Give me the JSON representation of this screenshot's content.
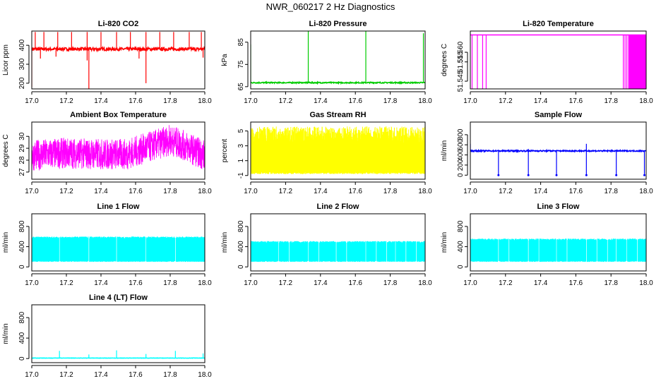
{
  "title": "NWR_060217  2 Hz Diagnostics",
  "chart_data": [
    {
      "id": "p1",
      "type": "line",
      "title": "Li-820 CO2",
      "ylabel": "Licor ppm",
      "color": "#ff0000",
      "xlim": [
        17.0,
        18.0
      ],
      "ylim": [
        170,
        475
      ],
      "xticks": [
        "17.0",
        "17.2",
        "17.4",
        "17.6",
        "17.8",
        "18.0"
      ],
      "yticks": [
        "200",
        "300",
        "400"
      ],
      "yticks_values": [
        200,
        300,
        400
      ],
      "trace": {
        "baseline": 380,
        "noise": 8,
        "spikes_up": [
          [
            17.02,
            470
          ],
          [
            17.07,
            470
          ],
          [
            17.15,
            470
          ],
          [
            17.23,
            470
          ],
          [
            17.32,
            470
          ],
          [
            17.4,
            470
          ],
          [
            17.49,
            470
          ],
          [
            17.57,
            470
          ],
          [
            17.66,
            470
          ],
          [
            17.74,
            470
          ],
          [
            17.82,
            470
          ],
          [
            17.91,
            470
          ],
          [
            17.98,
            470
          ]
        ],
        "spikes_down": [
          [
            17.0,
            180
          ],
          [
            17.33,
            165
          ],
          [
            17.66,
            200
          ],
          [
            17.05,
            330
          ],
          [
            17.14,
            340
          ],
          [
            17.32,
            320
          ],
          [
            17.62,
            330
          ],
          [
            17.99,
            335
          ]
        ]
      }
    },
    {
      "id": "p2",
      "type": "line",
      "title": "Li-820 Pressure",
      "ylabel": "kPa",
      "color": "#00cc00",
      "xlim": [
        17.0,
        18.0
      ],
      "ylim": [
        64,
        90
      ],
      "xticks": [
        "17.0",
        "17.2",
        "17.4",
        "17.6",
        "17.8",
        "18.0"
      ],
      "yticks": [
        "65",
        "75",
        "85"
      ],
      "yticks_values": [
        65,
        75,
        85
      ],
      "trace": {
        "baseline": 66.8,
        "noise": 0.25,
        "spikes_up": [
          [
            17.0,
            84
          ],
          [
            17.33,
            90
          ],
          [
            17.66,
            90
          ],
          [
            17.99,
            89
          ]
        ],
        "spikes_down": []
      }
    },
    {
      "id": "p3",
      "type": "line",
      "title": "Li-820 Temperature",
      "ylabel": "degrees C",
      "color": "#ff00ff",
      "xlim": [
        17.0,
        18.0
      ],
      "ylim": [
        51.541,
        51.571
      ],
      "xticks": [
        "17.0",
        "17.2",
        "17.4",
        "17.6",
        "17.8",
        "18.0"
      ],
      "yticks": [
        "51.545",
        "51.555",
        "51.560"
      ],
      "yticks_values": [
        51.545,
        51.555,
        51.56
      ],
      "trace": {
        "baseline": 51.569,
        "noise": 0.0,
        "spikes_up": [],
        "spikes_down": [
          [
            17.01,
            51.541
          ],
          [
            17.04,
            51.541
          ],
          [
            17.07,
            51.541
          ],
          [
            17.09,
            51.541
          ],
          [
            17.87,
            51.541
          ],
          [
            17.88,
            51.541
          ],
          [
            17.89,
            51.541
          ]
        ],
        "dense_band": [
          17.9,
          18.0
        ]
      }
    },
    {
      "id": "p4",
      "type": "line",
      "title": "Ambient Box Temperature",
      "ylabel": "degrees C",
      "color": "#ff00ff",
      "xlim": [
        17.0,
        18.0
      ],
      "ylim": [
        26.4,
        31.2
      ],
      "xticks": [
        "17.0",
        "17.2",
        "17.4",
        "17.6",
        "17.8",
        "18.0"
      ],
      "yticks": [
        "27",
        "28",
        "29",
        "30"
      ],
      "yticks_values": [
        27,
        28,
        29,
        30
      ],
      "trace": {
        "profile": [
          [
            17.0,
            28.4
          ],
          [
            17.2,
            28.6
          ],
          [
            17.4,
            28.5
          ],
          [
            17.55,
            28.5
          ],
          [
            17.7,
            29.2
          ],
          [
            17.8,
            29.7
          ],
          [
            17.9,
            29.1
          ],
          [
            18.0,
            28.4
          ]
        ],
        "noise": 1.3
      }
    },
    {
      "id": "p5",
      "type": "line",
      "title": "Gas Stream RH",
      "ylabel": "percent",
      "color": "#ffff00",
      "xlim": [
        17.0,
        18.0
      ],
      "ylim": [
        -1.5,
        6.2
      ],
      "xticks": [
        "17.0",
        "17.2",
        "17.4",
        "17.6",
        "17.8",
        "18.0"
      ],
      "yticks": [
        "-1",
        "1",
        "3",
        "5"
      ],
      "yticks_values": [
        -1,
        1,
        3,
        5
      ],
      "trace": {
        "band": [
          -0.8,
          5.6
        ]
      }
    },
    {
      "id": "p6",
      "type": "line",
      "title": "Sample Flow",
      "ylabel": "ml/min",
      "color": "#0000ff",
      "xlim": [
        17.0,
        18.0
      ],
      "ylim": [
        -80,
        1050
      ],
      "xticks": [
        "17.0",
        "17.2",
        "17.4",
        "17.6",
        "17.8",
        "18.0"
      ],
      "yticks": [
        "0",
        "200",
        "400",
        "600",
        "800"
      ],
      "yticks_values": [
        0,
        200,
        400,
        600,
        800
      ],
      "trace": {
        "baseline": 480,
        "noise": 12,
        "spikes_up": [
          [
            17.0,
            620
          ],
          [
            17.33,
            520
          ],
          [
            17.66,
            620
          ]
        ],
        "spikes_down": [
          [
            17.16,
            0
          ],
          [
            17.33,
            0
          ],
          [
            17.49,
            0
          ],
          [
            17.66,
            0
          ],
          [
            17.83,
            0
          ],
          [
            17.99,
            0
          ]
        ]
      }
    },
    {
      "id": "p7",
      "type": "line",
      "title": "Line 1 Flow",
      "ylabel": "ml/min",
      "color": "#00ffff",
      "xlim": [
        17.0,
        18.0
      ],
      "ylim": [
        -80,
        1050
      ],
      "xticks": [
        "17.0",
        "17.2",
        "17.4",
        "17.6",
        "17.8",
        "18.0"
      ],
      "yticks": [
        "0",
        "400",
        "800"
      ],
      "yticks_values": [
        0,
        400,
        800
      ],
      "trace": {
        "band": [
          100,
          600
        ],
        "gaps": [
          17.16,
          17.33,
          17.49,
          17.66,
          17.83
        ]
      }
    },
    {
      "id": "p8",
      "type": "line",
      "title": "Line 2 Flow",
      "ylabel": "ml/min",
      "color": "#00ffff",
      "xlim": [
        17.0,
        18.0
      ],
      "ylim": [
        -80,
        1050
      ],
      "xticks": [
        "17.0",
        "17.2",
        "17.4",
        "17.6",
        "17.8",
        "18.0"
      ],
      "yticks": [
        "0",
        "400",
        "800"
      ],
      "yticks_values": [
        0,
        400,
        800
      ],
      "trace": {
        "band": [
          100,
          510
        ],
        "gaps": [
          17.16,
          17.22,
          17.33,
          17.39,
          17.49,
          17.55,
          17.66,
          17.72,
          17.78,
          17.83,
          17.89,
          17.95
        ]
      }
    },
    {
      "id": "p9",
      "type": "line",
      "title": "Line 3 Flow",
      "ylabel": "ml/min",
      "color": "#00ffff",
      "xlim": [
        17.0,
        18.0
      ],
      "ylim": [
        -80,
        1050
      ],
      "xticks": [
        "17.0",
        "17.2",
        "17.4",
        "17.6",
        "17.8",
        "18.0"
      ],
      "yticks": [
        "0",
        "400",
        "800"
      ],
      "yticks_values": [
        0,
        400,
        800
      ],
      "trace": {
        "band": [
          100,
          560
        ],
        "gaps": [
          17.16,
          17.22,
          17.33,
          17.39,
          17.49,
          17.55,
          17.66,
          17.72,
          17.78,
          17.83,
          17.89,
          17.95
        ]
      }
    },
    {
      "id": "p10",
      "type": "line",
      "title": "Line 4 (LT) Flow",
      "ylabel": "ml/min",
      "color": "#00ffff",
      "xlim": [
        17.0,
        18.0
      ],
      "ylim": [
        -80,
        1050
      ],
      "xticks": [
        "17.0",
        "17.2",
        "17.4",
        "17.6",
        "17.8",
        "18.0"
      ],
      "yticks": [
        "0",
        "400",
        "800"
      ],
      "yticks_values": [
        0,
        400,
        800
      ],
      "trace": {
        "baseline": 10,
        "noise": 3,
        "spikes_up": [
          [
            17.16,
            150
          ],
          [
            17.33,
            80
          ],
          [
            17.49,
            160
          ],
          [
            17.66,
            90
          ],
          [
            17.83,
            150
          ],
          [
            17.99,
            100
          ]
        ],
        "spikes_down": []
      }
    }
  ]
}
